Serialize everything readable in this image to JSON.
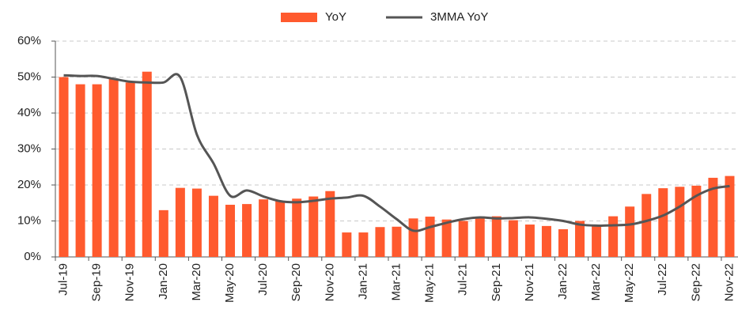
{
  "chart_data": {
    "type": "bar-line",
    "categories": [
      "Jul-19",
      null,
      "Sep-19",
      null,
      "Nov-19",
      null,
      "Jan-20",
      null,
      "Mar-20",
      null,
      "May-20",
      null,
      "Jul-20",
      null,
      "Sep-20",
      null,
      "Nov-20",
      null,
      "Jan-21",
      null,
      "Mar-21",
      null,
      "May-21",
      null,
      "Jul-21",
      null,
      "Sep-21",
      null,
      "Nov-21",
      null,
      "Jan-22",
      null,
      "Mar-22",
      null,
      "May-22",
      null,
      "Jul-22",
      null,
      "Sep-22",
      null,
      "Nov-22"
    ],
    "series": [
      {
        "name": "YoY",
        "type": "bar",
        "color": "#ff5a2e",
        "values": [
          50,
          48,
          48,
          49.5,
          48.5,
          51.5,
          13,
          19.2,
          19,
          17,
          14.5,
          14.7,
          16,
          15.5,
          16.2,
          16.8,
          18.3,
          6.8,
          6.8,
          8.3,
          8.4,
          10.7,
          11.2,
          10.4,
          10,
          11,
          11.3,
          10.2,
          9,
          8.6,
          7.7,
          10,
          9,
          11.3,
          14,
          17.5,
          19.1,
          19.5,
          19.8,
          22,
          22.5
        ]
      },
      {
        "name": "3MMA YoY",
        "type": "line",
        "color": "#555555",
        "values": [
          50.5,
          50.3,
          50.3,
          49.5,
          48.7,
          48.5,
          48.5,
          50,
          34,
          26,
          17,
          18.5,
          16.8,
          15.5,
          15.2,
          15.6,
          16.2,
          16.5,
          17,
          14,
          10.5,
          7.3,
          8.3,
          9.5,
          10.5,
          11,
          10.7,
          10.8,
          11,
          10.6,
          10,
          9,
          8.7,
          8.8,
          9,
          10,
          11.5,
          14,
          17,
          19,
          19.7
        ]
      }
    ],
    "ylim": [
      0,
      60
    ],
    "yticks": [
      {
        "value": 0,
        "label": "0%"
      },
      {
        "value": 10,
        "label": "10%"
      },
      {
        "value": 20,
        "label": "20%"
      },
      {
        "value": 30,
        "label": "30%"
      },
      {
        "value": 40,
        "label": "40%"
      },
      {
        "value": 50,
        "label": "50%"
      },
      {
        "value": 60,
        "label": "60%"
      }
    ],
    "grid": true,
    "legend": "top"
  }
}
